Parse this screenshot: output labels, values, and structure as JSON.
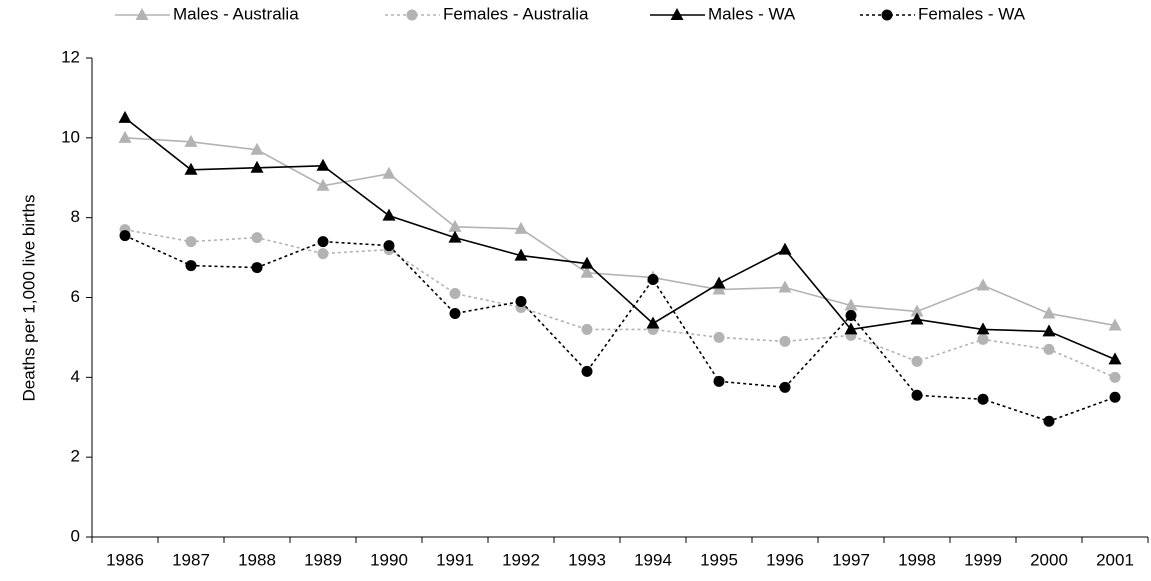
{
  "chart_data": {
    "type": "line",
    "y_label": "Deaths per 1,000 live births",
    "categories": [
      "1986",
      "1987",
      "1988",
      "1989",
      "1990",
      "1991",
      "1992",
      "1993",
      "1994",
      "1995",
      "1996",
      "1997",
      "1998",
      "1999",
      "2000",
      "2001"
    ],
    "series": [
      {
        "name": "Males - Australia",
        "color": "#b3b3b3",
        "marker": "triangle",
        "dashed": false,
        "values": [
          10.0,
          9.9,
          9.7,
          8.8,
          9.1,
          7.77,
          7.72,
          6.62,
          6.5,
          6.2,
          6.25,
          5.8,
          5.65,
          6.3,
          5.6,
          5.3
        ]
      },
      {
        "name": "Females - Australia",
        "color": "#b3b3b3",
        "marker": "circle",
        "dashed": true,
        "values": [
          7.7,
          7.4,
          7.5,
          7.1,
          7.2,
          6.1,
          5.75,
          5.2,
          5.2,
          5.0,
          4.9,
          5.05,
          4.4,
          4.95,
          4.7,
          4.0
        ]
      },
      {
        "name": "Males - WA",
        "color": "#000000",
        "marker": "triangle",
        "dashed": false,
        "values": [
          10.5,
          9.2,
          9.25,
          9.3,
          8.05,
          7.5,
          7.05,
          6.85,
          5.35,
          6.35,
          7.2,
          5.2,
          5.45,
          5.2,
          5.15,
          4.45
        ]
      },
      {
        "name": "Females - WA",
        "color": "#000000",
        "marker": "circle",
        "dashed": true,
        "values": [
          7.55,
          6.8,
          6.75,
          7.4,
          7.3,
          5.6,
          5.9,
          4.15,
          6.45,
          3.9,
          3.75,
          5.55,
          3.55,
          3.45,
          2.9,
          3.5
        ]
      }
    ],
    "ylim": [
      0,
      12
    ],
    "yticks": [
      0,
      2,
      4,
      6,
      8,
      10,
      12
    ],
    "grid": false,
    "legend": "top"
  }
}
